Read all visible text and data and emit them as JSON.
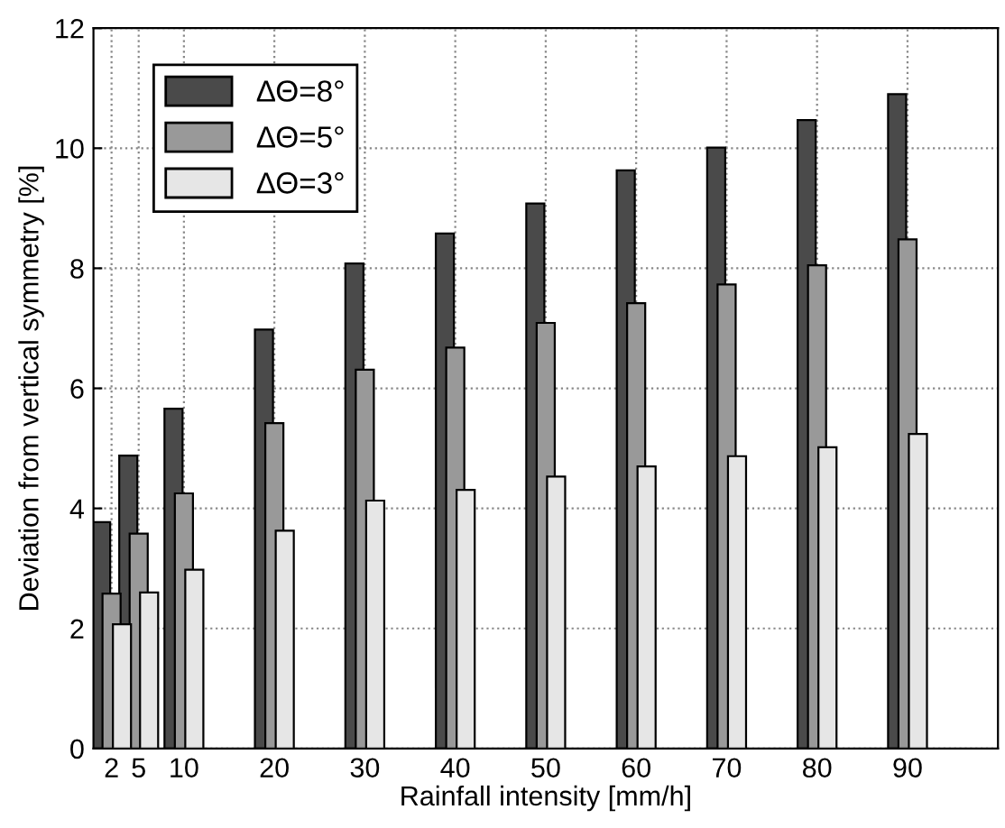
{
  "chart_data": {
    "type": "bar",
    "xlabel": "Rainfall intensity [mm/h]",
    "ylabel": "Deviation from vertical symmetry [%]",
    "x": [
      2,
      5,
      10,
      20,
      30,
      40,
      50,
      60,
      70,
      80,
      90
    ],
    "series": [
      {
        "name": "ΔΘ=8°",
        "color": "#4a4a4a",
        "values": [
          3.77,
          4.88,
          5.66,
          6.98,
          8.08,
          8.58,
          9.08,
          9.63,
          10.01,
          10.47,
          10.9
        ]
      },
      {
        "name": "ΔΘ=5°",
        "color": "#999999",
        "values": [
          2.58,
          3.58,
          4.25,
          5.42,
          6.31,
          6.68,
          7.09,
          7.42,
          7.73,
          8.05,
          8.48
        ]
      },
      {
        "name": "ΔΘ=3°",
        "color": "#e6e6e6",
        "values": [
          2.07,
          2.6,
          2.98,
          3.63,
          4.13,
          4.31,
          4.53,
          4.7,
          4.87,
          5.02,
          5.24
        ]
      }
    ],
    "xlim": [
      0,
      100
    ],
    "xticks": [
      2,
      5,
      10,
      20,
      30,
      40,
      50,
      60,
      70,
      80,
      90
    ],
    "ylim": [
      0,
      12
    ],
    "yticks": [
      0,
      2,
      4,
      6,
      8,
      10,
      12
    ],
    "grid": true,
    "legend": "top left"
  }
}
